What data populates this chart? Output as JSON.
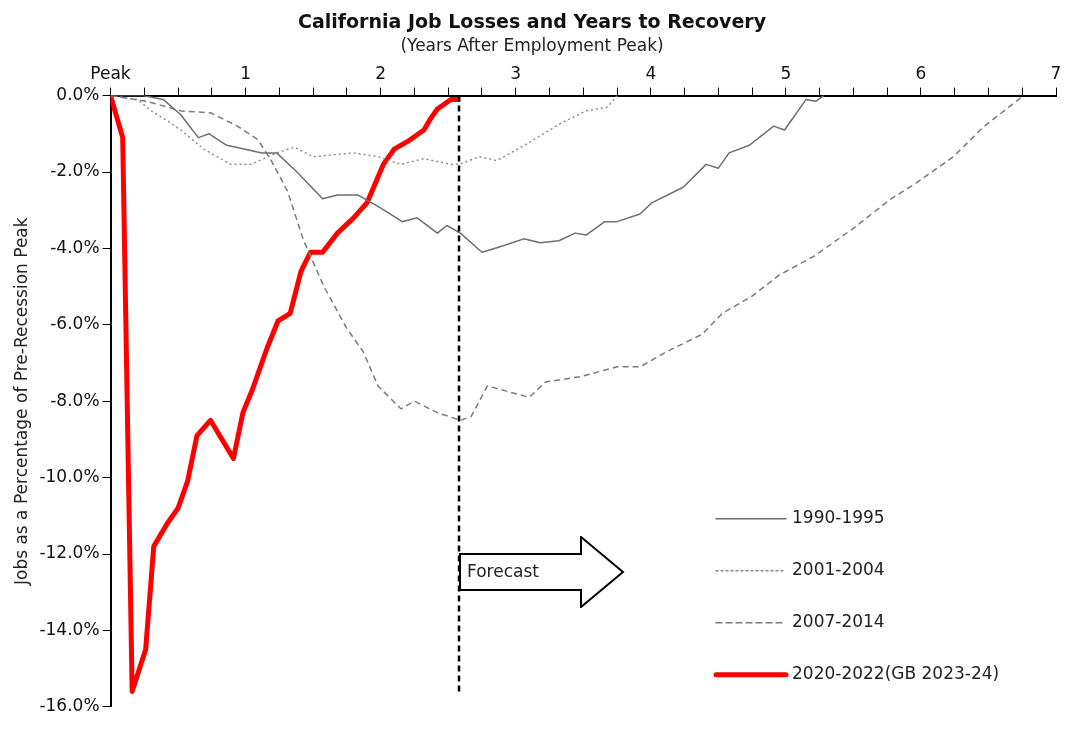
{
  "chart_data": {
    "type": "line",
    "title": "California Job Losses and Years to Recovery",
    "subtitle": "(Years After Employment Peak)",
    "ylabel": "Jobs as a Percentage of Pre-Recession Peak",
    "xlim": [
      0,
      7
    ],
    "xticks": [
      {
        "value": 0,
        "label": "Peak"
      },
      {
        "value": 0.25,
        "label": null
      },
      {
        "value": 0.5,
        "label": null
      },
      {
        "value": 0.75,
        "label": null
      },
      1,
      {
        "value": 1.25,
        "label": null
      },
      {
        "value": 1.5,
        "label": null
      },
      {
        "value": 1.75,
        "label": null
      },
      2,
      {
        "value": 2.25,
        "label": null
      },
      {
        "value": 2.5,
        "label": null
      },
      {
        "value": 2.75,
        "label": null
      },
      3,
      {
        "value": 3.25,
        "label": null
      },
      {
        "value": 3.5,
        "label": null
      },
      {
        "value": 3.75,
        "label": null
      },
      4,
      {
        "value": 4.25,
        "label": null
      },
      {
        "value": 4.5,
        "label": null
      },
      {
        "value": 4.75,
        "label": null
      },
      5,
      {
        "value": 5.25,
        "label": null
      },
      {
        "value": 5.5,
        "label": null
      },
      {
        "value": 5.75,
        "label": null
      },
      6,
      {
        "value": 6.25,
        "label": null
      },
      {
        "value": 6.5,
        "label": null
      },
      {
        "value": 6.75,
        "label": null
      },
      7
    ],
    "ylim": [
      -16,
      0
    ],
    "yticks": [
      {
        "value": 0,
        "label": "0.0%"
      },
      {
        "value": -2,
        "label": "-2.0%"
      },
      {
        "value": -4,
        "label": "-4.0%"
      },
      {
        "value": -6,
        "label": "-6.0%"
      },
      {
        "value": -8,
        "label": "-8.0%"
      },
      {
        "value": -10,
        "label": "-10.0%"
      },
      {
        "value": -12,
        "label": "-12.0%"
      },
      {
        "value": -14,
        "label": "-14.0%"
      },
      {
        "value": -16,
        "label": "-16.0%"
      }
    ],
    "grid": false,
    "legend": "bottom right",
    "marker": "none",
    "ref_lines": [
      {
        "axis": "x",
        "value": 2.58,
        "label": "Forecast",
        "color": "#000000",
        "line_style": "dashed"
      }
    ],
    "series": [
      {
        "name": "1990-1995",
        "color": "#6e6e6e",
        "line_style": "solid",
        "x": [
          0,
          0.24,
          0.39,
          0.52,
          0.65,
          0.73,
          0.86,
          0.99,
          1.12,
          1.23,
          1.38,
          1.57,
          1.68,
          1.83,
          1.98,
          2.16,
          2.27,
          2.42,
          2.49,
          2.59,
          2.75,
          2.89,
          3.06,
          3.18,
          3.32,
          3.44,
          3.52,
          3.66,
          3.75,
          3.92,
          4.01,
          4.24,
          4.41,
          4.5,
          4.58,
          4.73,
          4.91,
          4.99,
          5.15,
          5.22,
          5.28
        ],
        "values": [
          0,
          0,
          -0.1,
          -0.5,
          -1.1,
          -1,
          -1.3,
          -1.4,
          -1.5,
          -1.5,
          -2,
          -2.7,
          -2.6,
          -2.6,
          -2.9,
          -3.3,
          -3.2,
          -3.6,
          -3.4,
          -3.6,
          -4.1,
          -3.95,
          -3.75,
          -3.85,
          -3.8,
          -3.6,
          -3.65,
          -3.3,
          -3.3,
          -3.1,
          -2.8,
          -2.4,
          -1.8,
          -1.9,
          -1.5,
          -1.3,
          -0.8,
          -0.9,
          -0.1,
          -0.15,
          0
        ]
      },
      {
        "name": "2001-2004",
        "color": "#8c8c8c",
        "line_style": "dotted",
        "x": [
          0,
          0.2,
          0.3,
          0.44,
          0.52,
          0.69,
          0.89,
          1.04,
          1.23,
          1.36,
          1.5,
          1.8,
          1.98,
          2.15,
          2.32,
          2.52,
          2.58,
          2.73,
          2.86,
          3.09,
          3.32,
          3.52,
          3.68,
          3.75
        ],
        "values": [
          0,
          -0.1,
          -0.4,
          -0.7,
          -0.9,
          -1.4,
          -1.8,
          -1.8,
          -1.5,
          -1.35,
          -1.6,
          -1.5,
          -1.6,
          -1.8,
          -1.65,
          -1.8,
          -1.8,
          -1.6,
          -1.7,
          -1.25,
          -0.75,
          -0.4,
          -0.3,
          0
        ]
      },
      {
        "name": "2007-2014",
        "color": "#7a7a7a",
        "line_style": "dashed",
        "x": [
          0,
          0.27,
          0.52,
          0.74,
          0.94,
          1.09,
          1.19,
          1.31,
          1.43,
          1.58,
          1.75,
          1.87,
          1.98,
          2.15,
          2.25,
          2.42,
          2.59,
          2.67,
          2.79,
          3.1,
          3.22,
          3.49,
          3.75,
          3.92,
          4.12,
          4.38,
          4.53,
          4.75,
          4.95,
          5.21,
          5.49,
          5.78,
          5.96,
          6.24,
          6.47,
          6.76
        ],
        "values": [
          0,
          -0.15,
          -0.4,
          -0.45,
          -0.8,
          -1.15,
          -1.7,
          -2.5,
          -3.8,
          -5,
          -6.1,
          -6.7,
          -7.6,
          -8.2,
          -8,
          -8.3,
          -8.5,
          -8.4,
          -7.6,
          -7.9,
          -7.5,
          -7.35,
          -7.1,
          -7.1,
          -6.7,
          -6.25,
          -5.7,
          -5.25,
          -4.7,
          -4.2,
          -3.5,
          -2.7,
          -2.3,
          -1.6,
          -0.8,
          0
        ]
      },
      {
        "name": "2020-2022(GB 2023-24)",
        "color": "#ff0000",
        "line_style": "solid",
        "x": [
          0,
          0.09,
          0.16,
          0.26,
          0.32,
          0.42,
          0.5,
          0.57,
          0.64,
          0.74,
          0.91,
          0.98,
          1.05,
          1.16,
          1.24,
          1.33,
          1.41,
          1.48,
          1.57,
          1.68,
          1.8,
          1.9,
          1.96,
          2.02,
          2.1,
          2.2,
          2.32,
          2.37,
          2.42,
          2.52,
          2.59
        ],
        "values": [
          0,
          -1.1,
          -15.6,
          -14.5,
          -11.8,
          -11.2,
          -10.8,
          -10.1,
          -8.9,
          -8.5,
          -9.5,
          -8.3,
          -7.7,
          -6.6,
          -5.9,
          -5.7,
          -4.6,
          -4.1,
          -4.1,
          -3.6,
          -3.2,
          -2.8,
          -2.3,
          -1.8,
          -1.4,
          -1.2,
          -0.9,
          -0.6,
          -0.35,
          -0.1,
          -0.1
        ]
      }
    ]
  }
}
